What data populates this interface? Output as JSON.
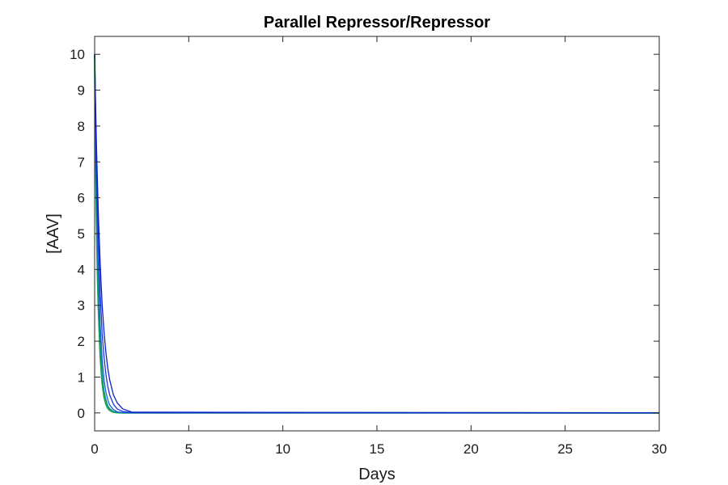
{
  "chart_data": {
    "type": "line",
    "title": "Parallel Repressor/Repressor",
    "xlabel": "Days",
    "ylabel": "[AAV]",
    "xlim": [
      0,
      30
    ],
    "ylim": [
      -0.5,
      10.5
    ],
    "xticks": [
      0,
      5,
      10,
      15,
      20,
      25,
      30
    ],
    "yticks": [
      0,
      1,
      2,
      3,
      4,
      5,
      6,
      7,
      8,
      9,
      10
    ],
    "grid": false,
    "legend": null,
    "series": [
      {
        "color": "#1aa84a",
        "x": [
          0,
          0.05,
          0.1,
          0.15,
          0.2,
          0.3,
          0.4,
          0.5,
          0.6,
          0.7,
          0.8,
          1.0,
          1.2,
          1.5,
          30
        ],
        "y": [
          10,
          7.3,
          5.4,
          3.9,
          2.9,
          1.55,
          0.83,
          0.45,
          0.24,
          0.13,
          0.07,
          0.02,
          0.006,
          0.001,
          0
        ]
      },
      {
        "color": "#0a8f8f",
        "x": [
          0,
          0.05,
          0.1,
          0.15,
          0.2,
          0.3,
          0.4,
          0.5,
          0.6,
          0.7,
          0.8,
          1.0,
          1.2,
          1.5,
          30
        ],
        "y": [
          10,
          7.6,
          5.8,
          4.4,
          3.3,
          1.9,
          1.1,
          0.62,
          0.36,
          0.2,
          0.12,
          0.04,
          0.013,
          0.002,
          0
        ]
      },
      {
        "color": "#2060d0",
        "x": [
          0,
          0.05,
          0.1,
          0.15,
          0.2,
          0.3,
          0.4,
          0.5,
          0.6,
          0.7,
          0.8,
          1.0,
          1.2,
          1.5,
          30
        ],
        "y": [
          10,
          7.9,
          6.2,
          4.9,
          3.9,
          2.4,
          1.5,
          0.93,
          0.58,
          0.36,
          0.22,
          0.09,
          0.033,
          0.008,
          0
        ]
      },
      {
        "color": "#1a35e0",
        "x": [
          0,
          0.05,
          0.1,
          0.15,
          0.2,
          0.3,
          0.4,
          0.5,
          0.6,
          0.7,
          0.8,
          1.0,
          1.2,
          1.5,
          2.0,
          30
        ],
        "y": [
          10,
          8.3,
          6.9,
          5.7,
          4.8,
          3.3,
          2.2,
          1.55,
          1.07,
          0.73,
          0.5,
          0.24,
          0.11,
          0.04,
          0.006,
          0
        ]
      },
      {
        "color": "#0a20c8",
        "x": [
          0,
          0.05,
          0.1,
          0.15,
          0.2,
          0.3,
          0.4,
          0.5,
          0.6,
          0.7,
          0.8,
          1.0,
          1.2,
          1.5,
          2.0,
          30
        ],
        "y": [
          10,
          8.6,
          7.4,
          6.4,
          5.5,
          4.1,
          3.0,
          2.25,
          1.67,
          1.24,
          0.92,
          0.5,
          0.28,
          0.11,
          0.02,
          0
        ]
      }
    ]
  }
}
